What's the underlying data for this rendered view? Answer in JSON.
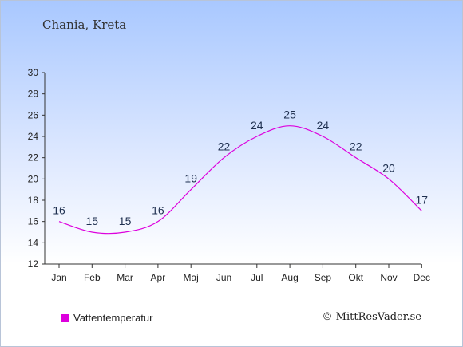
{
  "header": {
    "title": "Chania, Kreta"
  },
  "legend": {
    "label": "Vattentemperatur",
    "color": "#dd00dd"
  },
  "credit": {
    "text": "© MittResVader.se"
  },
  "chart_data": {
    "type": "line",
    "categories": [
      "Jan",
      "Feb",
      "Mar",
      "Apr",
      "Maj",
      "Jun",
      "Jul",
      "Aug",
      "Sep",
      "Okt",
      "Nov",
      "Dec"
    ],
    "series": [
      {
        "name": "Vattentemperatur",
        "values": [
          16,
          15,
          15,
          16,
          19,
          22,
          24,
          25,
          24,
          22,
          20,
          17
        ],
        "color": "#dd00dd"
      }
    ],
    "ylim": [
      12,
      30
    ],
    "yticks": [
      12,
      14,
      16,
      18,
      20,
      22,
      24,
      26,
      28,
      30
    ],
    "grid": false,
    "legend_position": "bottom-left"
  }
}
